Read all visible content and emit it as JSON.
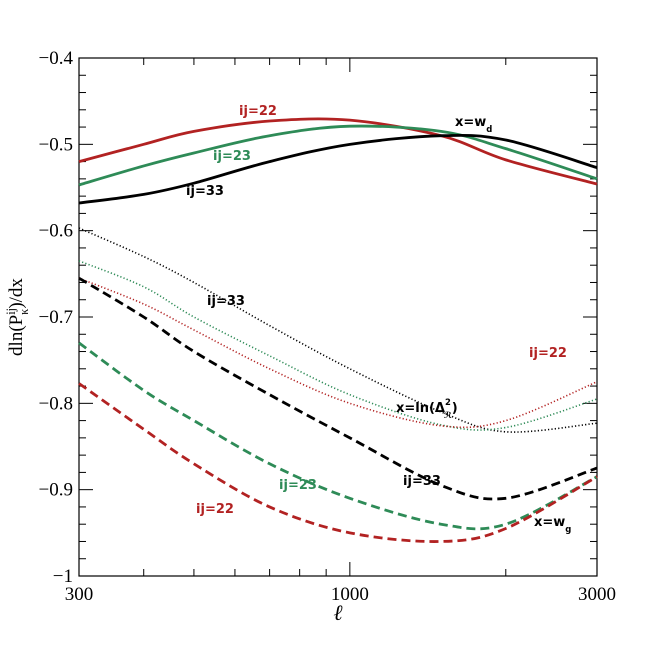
{
  "chart_data": {
    "type": "line",
    "x_label": "ℓ",
    "y_label_parts": [
      {
        "text": "dln(P"
      },
      {
        "text": "ij",
        "sup": true
      },
      {
        "text": "κ",
        "sub": true
      },
      {
        "text": ")/dx"
      }
    ],
    "log_x": true,
    "x": [
      300,
      400,
      500,
      700,
      1000,
      1500,
      2000,
      3000
    ],
    "xlim": [
      300,
      3000
    ],
    "xticks": [
      300,
      1000,
      3000
    ],
    "xminor_ticks": [
      400,
      500,
      600,
      700,
      800,
      900,
      2000
    ],
    "ylim": [
      -1,
      -0.4
    ],
    "yticks": [
      {
        "value": -1,
        "label": "−1"
      },
      {
        "value": -0.9,
        "label": "−0.9"
      },
      {
        "value": -0.8,
        "label": "−0.8"
      },
      {
        "value": -0.7,
        "label": "−0.7"
      },
      {
        "value": -0.6,
        "label": "−0.6"
      },
      {
        "value": -0.5,
        "label": "−0.5"
      },
      {
        "value": -0.4,
        "label": "−0.4"
      }
    ],
    "yminor_ticks": [
      -0.98,
      -0.96,
      -0.94,
      -0.92,
      -0.88,
      -0.86,
      -0.84,
      -0.82,
      -0.78,
      -0.76,
      -0.74,
      -0.72,
      -0.68,
      -0.66,
      -0.64,
      -0.62,
      -0.58,
      -0.56,
      -0.54,
      -0.52,
      -0.48,
      -0.46,
      -0.44,
      -0.42
    ],
    "series": [
      {
        "color": "#b22222",
        "style": "solid",
        "values": [
          -0.52,
          -0.5,
          -0.485,
          -0.473,
          -0.472,
          -0.49,
          -0.518,
          -0.546
        ]
      },
      {
        "color": "#2e8b57",
        "style": "solid",
        "values": [
          -0.547,
          -0.525,
          -0.51,
          -0.49,
          -0.479,
          -0.485,
          -0.505,
          -0.54
        ]
      },
      {
        "color": "#000000",
        "style": "solid",
        "values": [
          -0.568,
          -0.558,
          -0.545,
          -0.52,
          -0.5,
          -0.49,
          -0.495,
          -0.527
        ]
      },
      {
        "color": "#000000",
        "style": "dotted",
        "values": [
          -0.597,
          -0.63,
          -0.66,
          -0.71,
          -0.76,
          -0.81,
          -0.833,
          -0.823
        ]
      },
      {
        "color": "#2e8b57",
        "style": "dotted",
        "values": [
          -0.635,
          -0.665,
          -0.7,
          -0.745,
          -0.79,
          -0.825,
          -0.828,
          -0.795
        ]
      },
      {
        "color": "#b22222",
        "style": "dotted",
        "values": [
          -0.655,
          -0.685,
          -0.715,
          -0.76,
          -0.8,
          -0.826,
          -0.82,
          -0.775
        ]
      },
      {
        "color": "#000000",
        "style": "dashed",
        "values": [
          -0.655,
          -0.7,
          -0.74,
          -0.79,
          -0.84,
          -0.895,
          -0.91,
          -0.875
        ]
      },
      {
        "color": "#2e8b57",
        "style": "dashed",
        "values": [
          -0.73,
          -0.785,
          -0.82,
          -0.87,
          -0.91,
          -0.94,
          -0.94,
          -0.885
        ]
      },
      {
        "color": "#b22222",
        "style": "dashed",
        "values": [
          -0.777,
          -0.83,
          -0.87,
          -0.92,
          -0.95,
          -0.96,
          -0.945,
          -0.885
        ]
      }
    ],
    "annotations": [
      {
        "color": "#b22222",
        "parts": [
          {
            "text": "ij=22"
          }
        ]
      },
      {
        "color": "#2e8b57",
        "parts": [
          {
            "text": "ij=23"
          }
        ]
      },
      {
        "color": "#000000",
        "parts": [
          {
            "text": "ij=33"
          }
        ]
      },
      {
        "color": "#000000",
        "parts": [
          {
            "text": "x=w"
          },
          {
            "text": "d",
            "sub": true
          }
        ]
      },
      {
        "color": "#000000",
        "parts": [
          {
            "text": "ij=33"
          }
        ]
      },
      {
        "color": "#b22222",
        "parts": [
          {
            "text": "ij=22"
          }
        ]
      },
      {
        "color": "#000000",
        "parts": [
          {
            "text": "x=ln(Δ"
          },
          {
            "text": "2",
            "sup": true
          },
          {
            "text": "ℛ",
            "sub": true
          },
          {
            "text": ")"
          }
        ]
      },
      {
        "color": "#000000",
        "parts": [
          {
            "text": "ij=33"
          }
        ]
      },
      {
        "color": "#2e8b57",
        "parts": [
          {
            "text": "ij=23"
          }
        ]
      },
      {
        "color": "#b22222",
        "parts": [
          {
            "text": "ij=22"
          }
        ]
      },
      {
        "color": "#000000",
        "parts": [
          {
            "text": "x=w"
          },
          {
            "text": "g",
            "sub": true
          }
        ]
      }
    ]
  }
}
